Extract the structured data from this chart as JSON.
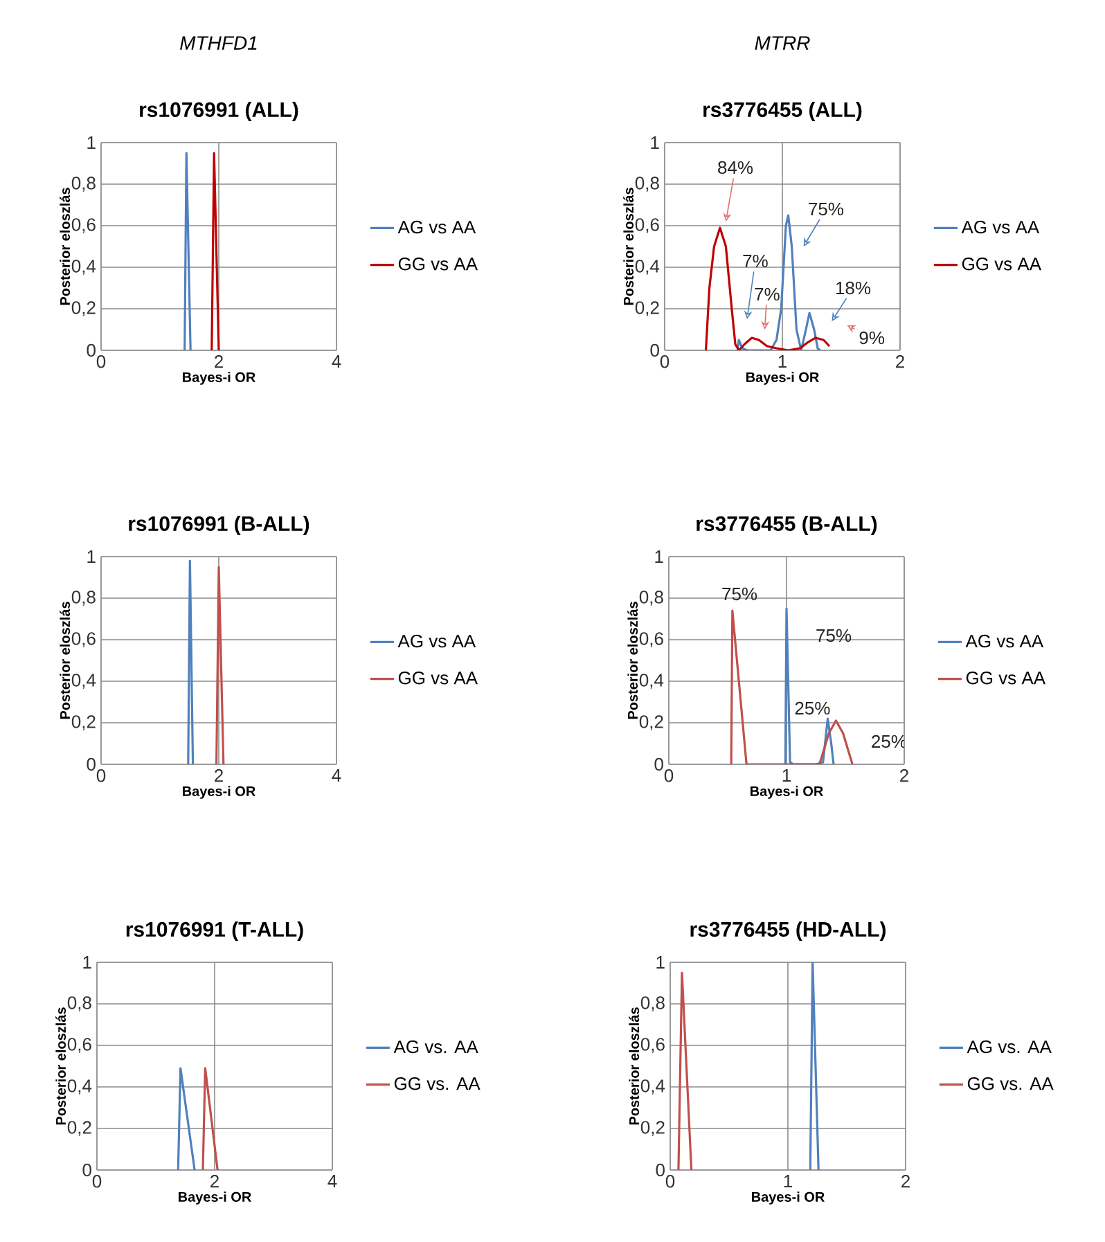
{
  "chart_data": [
    {
      "type": "line",
      "subtitle": "*MTHFD1*",
      "title": "rs1076991 (ALL)",
      "xlabel": "Bayes-i OR",
      "ylabel": "Posterior eloszlás",
      "xlim": [
        0,
        4
      ],
      "xticks": [
        0,
        2,
        4
      ],
      "ylim": [
        0,
        1
      ],
      "yticks": [
        0,
        {
          "value": 0.2,
          "label": "0,2"
        },
        {
          "value": 0.4,
          "label": "0,4"
        },
        {
          "value": 0.6,
          "label": "0,6"
        },
        {
          "value": 0.8,
          "label": "0,8"
        },
        1
      ],
      "grid": true,
      "legend": "right",
      "series": [
        {
          "name": "AG vs AA",
          "color": "#4f81bd",
          "x": [
            1.42,
            1.45,
            1.52
          ],
          "values": [
            0,
            0.95,
            0
          ]
        },
        {
          "name": "GG vs AA",
          "color": "#c00000",
          "x": [
            1.88,
            1.92,
            2.0
          ],
          "values": [
            0,
            0.95,
            0
          ]
        }
      ]
    },
    {
      "type": "line",
      "subtitle": "*MTRR*",
      "title": "rs3776455 (ALL)",
      "xlabel": "Bayes-i OR",
      "ylabel": "Posterior eloszlás",
      "xlim": [
        0,
        2
      ],
      "xticks": [
        0,
        1,
        2
      ],
      "ylim": [
        0,
        1
      ],
      "yticks": [
        0,
        {
          "value": 0.2,
          "label": "0,2"
        },
        {
          "value": 0.4,
          "label": "0,4"
        },
        {
          "value": 0.6,
          "label": "0,6"
        },
        {
          "value": 0.8,
          "label": "0,8"
        },
        1
      ],
      "grid": true,
      "legend": "right",
      "series": [
        {
          "name": "AG vs AA",
          "color": "#4f81bd",
          "x": [
            0.62,
            0.63,
            0.66,
            0.7,
            0.9,
            0.95,
            0.99,
            1.03,
            1.05,
            1.08,
            1.12,
            1.16,
            1.2,
            1.23,
            1.27,
            1.3,
            1.32
          ],
          "values": [
            0,
            0.05,
            0.01,
            0,
            0,
            0.05,
            0.2,
            0.6,
            0.65,
            0.5,
            0.1,
            0,
            0.1,
            0.18,
            0.1,
            0.01,
            0
          ]
        },
        {
          "name": "GG vs AA",
          "color": "#c00000",
          "x": [
            0.35,
            0.38,
            0.42,
            0.47,
            0.52,
            0.57,
            0.6,
            0.63,
            0.68,
            0.74,
            0.8,
            0.87,
            0.95,
            1.05,
            1.15,
            1.22,
            1.28,
            1.35,
            1.4
          ],
          "values": [
            0,
            0.3,
            0.5,
            0.59,
            0.5,
            0.2,
            0.03,
            0,
            0.03,
            0.06,
            0.05,
            0.02,
            0.01,
            0,
            0.01,
            0.04,
            0.06,
            0.05,
            0.02
          ]
        }
      ],
      "annotations": [
        "84%",
        "75%",
        "7%",
        "7%",
        "18%",
        "9%"
      ]
    },
    {
      "type": "line",
      "title": "rs1076991 (B-ALL)",
      "xlabel": "Bayes-i OR",
      "ylabel": "Posterior eloszlás",
      "xlim": [
        0,
        4
      ],
      "xticks": [
        0,
        2,
        4
      ],
      "ylim": [
        0,
        1
      ],
      "yticks": [
        0,
        {
          "value": 0.2,
          "label": "0,2"
        },
        {
          "value": 0.4,
          "label": "0,4"
        },
        {
          "value": 0.6,
          "label": "0,6"
        },
        {
          "value": 0.8,
          "label": "0,8"
        },
        1
      ],
      "grid": true,
      "legend": "right",
      "series": [
        {
          "name": "AG vs AA",
          "color": "#4f81bd",
          "x": [
            1.48,
            1.51,
            1.56
          ],
          "values": [
            0,
            0.98,
            0
          ]
        },
        {
          "name": "GG vs AA",
          "color": "#c0504d",
          "x": [
            1.96,
            2.0,
            2.08
          ],
          "values": [
            0,
            0.95,
            0
          ]
        }
      ]
    },
    {
      "type": "line",
      "title": "rs3776455 (B-ALL)",
      "xlabel": "Bayes-i OR",
      "ylabel": "Posterior eloszlás",
      "xlim": [
        0,
        2
      ],
      "xticks": [
        0,
        1,
        2
      ],
      "ylim": [
        0,
        1
      ],
      "yticks": [
        0,
        {
          "value": 0.2,
          "label": "0,2"
        },
        {
          "value": 0.4,
          "label": "0,4"
        },
        {
          "value": 0.6,
          "label": "0,6"
        },
        {
          "value": 0.8,
          "label": "0,8"
        },
        1
      ],
      "grid": true,
      "legend": "right",
      "series": [
        {
          "name": "AG vs AA",
          "color": "#4f81bd",
          "x": [
            0.99,
            1.0,
            1.03,
            1.06,
            1.25,
            1.31,
            1.35,
            1.38,
            1.4
          ],
          "values": [
            0,
            0.75,
            0.01,
            0,
            0,
            0.01,
            0.22,
            0.1,
            0
          ]
        },
        {
          "name": "GG vs AA",
          "color": "#c0504d",
          "x": [
            0.53,
            0.54,
            0.66,
            0.74,
            1.28,
            1.36,
            1.42,
            1.48,
            1.56
          ],
          "values": [
            0,
            0.74,
            0,
            0,
            0,
            0.15,
            0.21,
            0.15,
            0
          ]
        }
      ],
      "annotations": [
        "75%",
        "75%",
        "25%",
        "25%"
      ]
    },
    {
      "type": "line",
      "title": "rs1076991 (T-ALL)",
      "xlabel": "Bayes-i OR",
      "ylabel": "Posterior eloszlás",
      "xlim": [
        0,
        4
      ],
      "xticks": [
        0,
        2,
        4
      ],
      "ylim": [
        0,
        1
      ],
      "yticks": [
        0,
        {
          "value": 0.2,
          "label": "0,2"
        },
        {
          "value": 0.4,
          "label": "0,4"
        },
        {
          "value": 0.6,
          "label": "0,6"
        },
        {
          "value": 0.8,
          "label": "0,8"
        },
        1
      ],
      "grid": true,
      "legend": "right",
      "series": [
        {
          "name": "AG vs. AA",
          "color": "#4f81bd",
          "x": [
            1.38,
            1.42,
            1.66
          ],
          "values": [
            0,
            0.49,
            0
          ]
        },
        {
          "name": "GG vs. AA",
          "color": "#c0504d",
          "x": [
            1.8,
            1.84,
            2.05
          ],
          "values": [
            0,
            0.49,
            0
          ]
        }
      ]
    },
    {
      "type": "line",
      "title": "rs3776455 (HD-ALL)",
      "xlabel": "Bayes-i OR",
      "ylabel": "Posterior eloszlás",
      "xlim": [
        0,
        2
      ],
      "xticks": [
        0,
        1,
        2
      ],
      "ylim": [
        0,
        1
      ],
      "yticks": [
        0,
        {
          "value": 0.2,
          "label": "0,2"
        },
        {
          "value": 0.4,
          "label": "0,4"
        },
        {
          "value": 0.6,
          "label": "0,6"
        },
        {
          "value": 0.8,
          "label": "0,8"
        },
        1
      ],
      "grid": true,
      "legend": "right",
      "series": [
        {
          "name": "AG vs. AA",
          "color": "#4f81bd",
          "x": [
            1.19,
            1.21,
            1.26
          ],
          "values": [
            0,
            1.0,
            0
          ]
        },
        {
          "name": "GG vs. AA",
          "color": "#c0504d",
          "x": [
            0.07,
            0.1,
            0.18
          ],
          "values": [
            0,
            0.95,
            0
          ]
        }
      ]
    }
  ]
}
